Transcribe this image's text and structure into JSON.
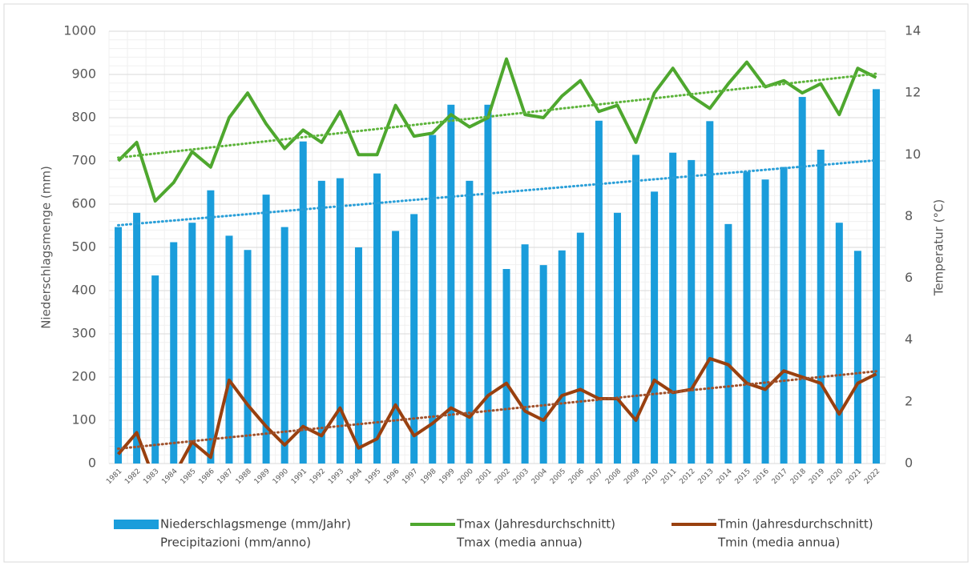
{
  "chart_data": {
    "type": "bar_line",
    "categories": [
      "1981",
      "1982",
      "1983",
      "1984",
      "1985",
      "1986",
      "1987",
      "1988",
      "1989",
      "1990",
      "1991",
      "1992",
      "1993",
      "1994",
      "1995",
      "1996",
      "1997",
      "1998",
      "1999",
      "2000",
      "2001",
      "2002",
      "2003",
      "2004",
      "2005",
      "2006",
      "2007",
      "2008",
      "2009",
      "2010",
      "2011",
      "2012",
      "2013",
      "2014",
      "2015",
      "2016",
      "2017",
      "2018",
      "2019",
      "2020",
      "2021",
      "2022"
    ],
    "ylabel": "Niederschlagsmenge (mm)",
    "y2label": "Temperatur (°C)",
    "ylim": [
      0,
      1000
    ],
    "yticks": [
      0,
      100,
      200,
      300,
      400,
      500,
      600,
      700,
      800,
      900,
      1000
    ],
    "y2lim": [
      0,
      14
    ],
    "y2ticks": [
      0,
      2,
      4,
      6,
      8,
      10,
      12,
      14
    ],
    "grid": true,
    "trendlines": true,
    "legend": "bottom",
    "series": [
      {
        "name": "Niederschlagsmenge (mm/Jahr)",
        "name_alt": "Precipitazioni (mm/anno)",
        "kind": "bar",
        "color": "#1a9ddb",
        "trend_color": "#2a9fd8",
        "values": [
          547,
          580,
          435,
          512,
          557,
          632,
          527,
          494,
          622,
          547,
          745,
          654,
          660,
          500,
          671,
          538,
          577,
          760,
          830,
          654,
          830,
          450,
          507,
          459,
          493,
          534,
          793,
          580,
          714,
          629,
          719,
          702,
          792,
          554,
          675,
          657,
          686,
          848,
          726,
          557,
          492,
          866
        ]
      },
      {
        "name": "Tmax (Jahresdurchschnitt)",
        "name_alt": "Tmax (media annua)",
        "kind": "line",
        "axis": "y2",
        "color": "#4ea72e",
        "trend_color": "#5db43b",
        "values": [
          9.8,
          10.4,
          8.5,
          9.1,
          10.1,
          9.6,
          11.2,
          12.0,
          11.0,
          10.2,
          10.8,
          10.4,
          11.4,
          10.0,
          10.0,
          11.6,
          10.6,
          10.7,
          11.3,
          10.9,
          11.2,
          13.1,
          11.3,
          11.2,
          11.9,
          12.4,
          11.4,
          11.6,
          10.4,
          12.0,
          12.8,
          11.9,
          11.5,
          12.3,
          13.0,
          12.2,
          12.4,
          12.0,
          12.3,
          11.3,
          12.8,
          12.5
        ]
      },
      {
        "name": "Tmin (Jahresdurchschnitt)",
        "name_alt": "Tmin (media annua)",
        "kind": "line",
        "axis": "y2",
        "color": "#99400f",
        "trend_color": "#a0522d",
        "values": [
          0.3,
          1.0,
          -0.6,
          -0.4,
          0.7,
          0.2,
          2.7,
          1.9,
          1.2,
          0.6,
          1.2,
          0.9,
          1.8,
          0.5,
          0.8,
          1.9,
          0.9,
          1.3,
          1.8,
          1.5,
          2.2,
          2.6,
          1.7,
          1.4,
          2.2,
          2.4,
          2.1,
          2.1,
          1.4,
          2.7,
          2.3,
          2.4,
          3.4,
          3.2,
          2.6,
          2.4,
          3.0,
          2.8,
          2.6,
          1.6,
          2.6,
          2.9
        ]
      }
    ]
  }
}
